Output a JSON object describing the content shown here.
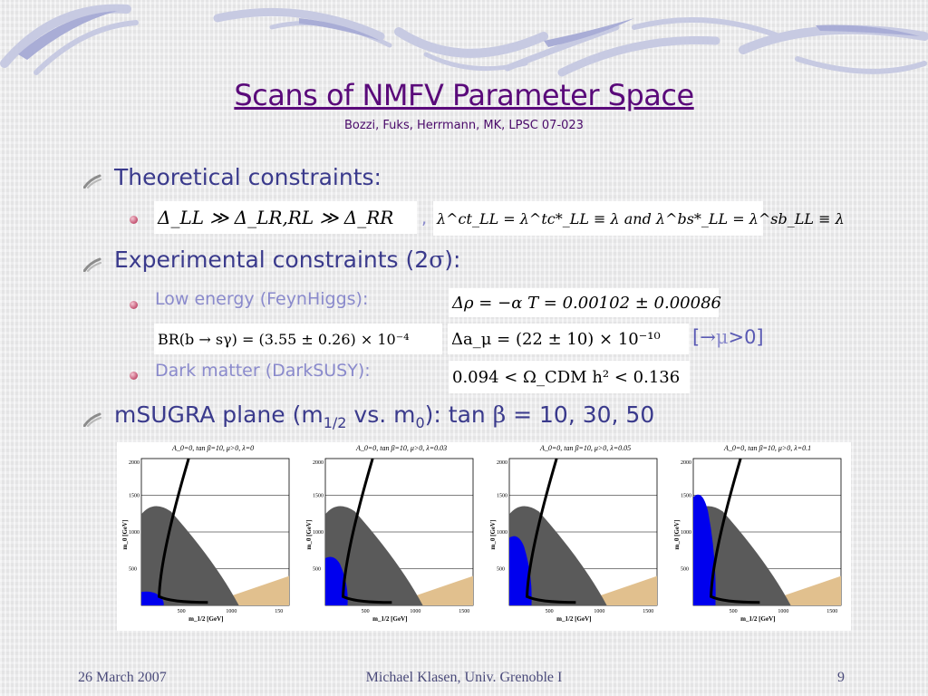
{
  "slide": {
    "title": "Scans of NMFV Parameter Space",
    "subtitle": "Bozzi, Fuks, Herrmann, MK, LPSC 07-023"
  },
  "bullets": {
    "theoretical": "Theoretical constraints:",
    "theoretical_math_a": "Δ_LL ≫ Δ_LR,RL ≫ Δ_RR",
    "theoretical_math_sep": ",",
    "theoretical_math_b": "λ^ct_LL = λ^tc*_LL ≡ λ   and   λ^bs*_LL = λ^sb_LL ≡ λ",
    "experimental_pre": "Experimental constraints (2",
    "experimental_sigma": "σ",
    "experimental_post": "):",
    "low_energy": "Low energy (FeynHiggs):",
    "low_energy_math": "Δρ = −α T = 0.00102 ± 0.00086",
    "bsg_math": "BR(b → sγ) = (3.55 ± 0.26) × 10⁻⁴",
    "amu_math": "Δa_μ = (22 ± 10) × 10⁻¹⁰",
    "mu_note_open": "[",
    "mu_note_arrow": "→",
    "mu_note_mu": "μ",
    "mu_note_close": ">0]",
    "dark_matter": "Dark matter (DarkSUSY):",
    "dark_matter_math": "0.094 < Ω_CDM h² < 0.136",
    "msugra_a": "mSUGRA plane (m",
    "msugra_sub1": "1/2",
    "msugra_b": " vs. m",
    "msugra_sub0": "0",
    "msugra_c": "): tan ",
    "msugra_beta": "β",
    "msugra_d": " = 10, 30, 50"
  },
  "plots": [
    {
      "label": "A_0=0, tan β=10, μ>0, λ=0",
      "region_fraction": 0.1
    },
    {
      "label": "A_0=0, tan β=10, μ>0, λ=0.03",
      "region_fraction": 0.35
    },
    {
      "label": "A_0=0, tan β=10, μ>0, λ=0.05",
      "region_fraction": 0.5
    },
    {
      "label": "A_0=0, tan β=10, μ>0, λ=0.1",
      "region_fraction": 0.8
    }
  ],
  "plot_axes": {
    "ylabel": "m_0 [GeV]",
    "xlabel": "m_1/2 [GeV]",
    "yticks": [
      "2000",
      "1500",
      "1000",
      "500"
    ],
    "xticks": [
      "500",
      "1000",
      "1500"
    ],
    "xticks_first": [
      "500",
      "1000",
      "150"
    ]
  },
  "footer": {
    "date": "26 March 2007",
    "author": "Michael Klasen, Univ. Grenoble I",
    "page": "9"
  },
  "colors": {
    "title": "#5a0a7a",
    "bullet_main": "#3a3a8c",
    "bullet_sub": "#8a8acc",
    "excluded": "#5a5a5a",
    "dark_matter_band": "#000000",
    "nmfv_region": "#0000ee",
    "charged_lsp": "#e1c08e"
  },
  "icons": [
    "arrow-bullet-icon",
    "pink-dot-bullet-icon"
  ]
}
